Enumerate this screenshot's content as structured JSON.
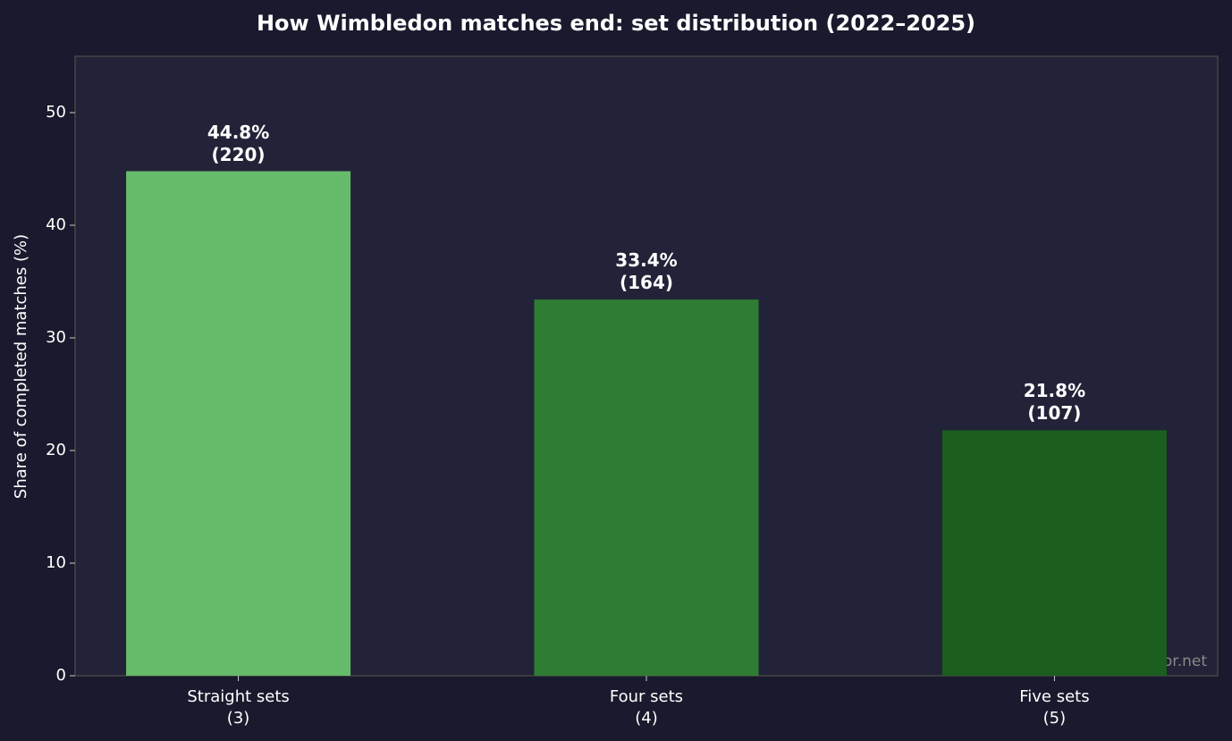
{
  "chart_data": {
    "type": "bar",
    "title": "How Wimbledon matches end: set distribution (2022–2025)",
    "ylabel": "Share of completed matches (%)",
    "categories": [
      "Straight sets\n(3)",
      "Four sets\n(4)",
      "Five sets\n(5)"
    ],
    "values": [
      44.8,
      33.4,
      21.8
    ],
    "value_labels": [
      "44.8%\n(220)",
      "33.4%\n(164)",
      "21.8%\n(107)"
    ],
    "colors": [
      "#66bb6a",
      "#2e7d32",
      "#1b5e20"
    ],
    "ylim": [
      0,
      55
    ],
    "yticks": [
      0,
      10,
      20,
      30,
      40,
      50
    ],
    "watermark": "tennispredictor.net"
  }
}
